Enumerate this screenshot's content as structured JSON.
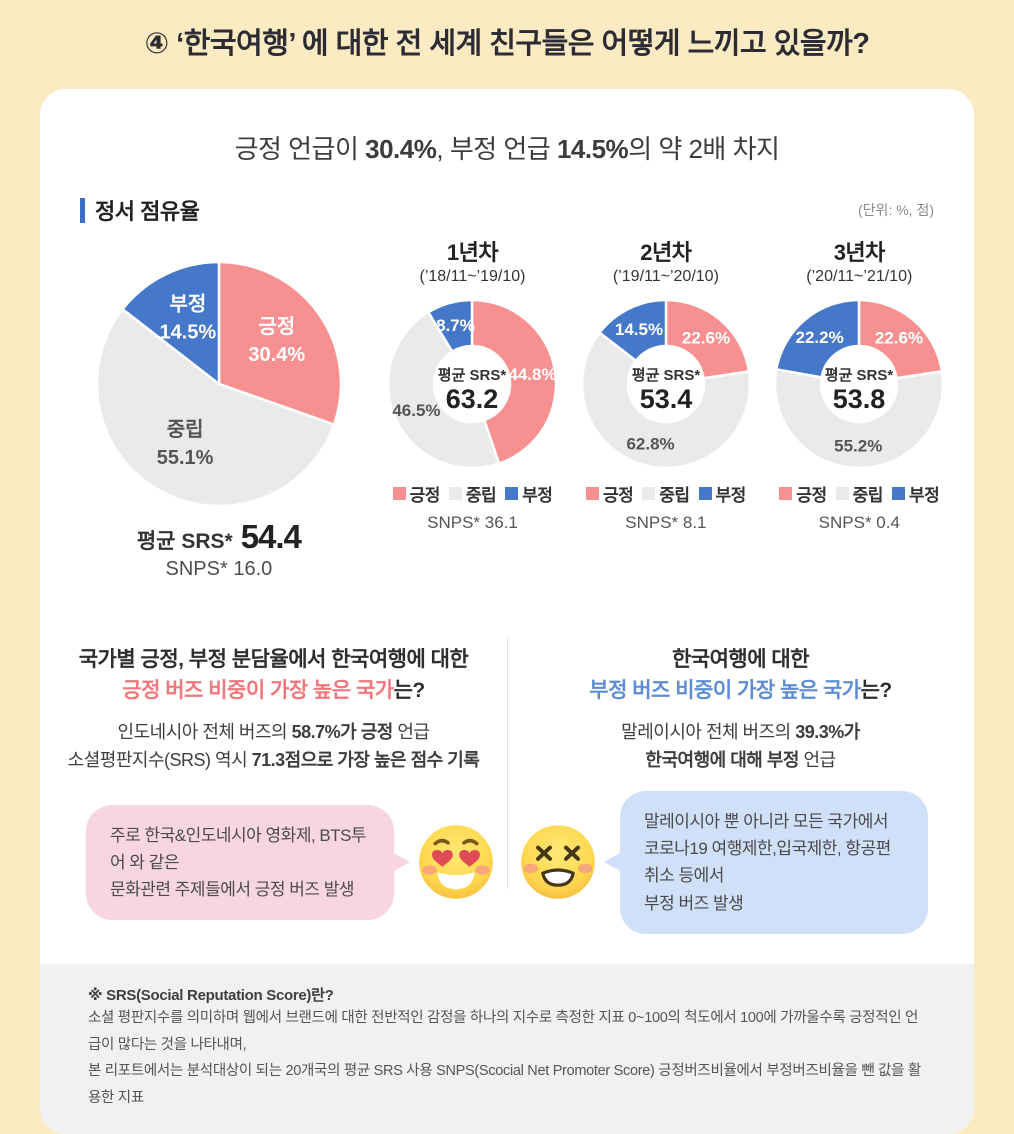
{
  "page": {
    "title": "④ ‘한국여행’ 에 대한 전 세계 친구들은 어떻게 느끼고 있을까?"
  },
  "subtitle_segments": [
    {
      "t": "긍정 언급이 "
    },
    {
      "t": "30.4%",
      "b": true
    },
    {
      "t": ", 부정 언급 "
    },
    {
      "t": "14.5%",
      "b": true
    },
    {
      "t": "의 약 2배 차지"
    }
  ],
  "section": {
    "label": "정서 점유율",
    "unit": "(단위: %, 점)",
    "bar_color": "#3A6BC6"
  },
  "legend": [
    {
      "label": "긍정",
      "color": "#F79191",
      "label_color": "#FFFFFF"
    },
    {
      "label": "중립",
      "color": "#EAEAEA",
      "label_color": "#555555"
    },
    {
      "label": "부정",
      "color": "#4678C9",
      "label_color": "#FFFFFF"
    }
  ],
  "chart_data": [
    {
      "type": "pie",
      "id": "main",
      "slices": [
        {
          "name": "긍정",
          "value": 30.4,
          "label": "30.4%"
        },
        {
          "name": "중립",
          "value": 55.1,
          "label": "55.1%"
        },
        {
          "name": "부정",
          "value": 14.5,
          "label": "14.5%"
        }
      ],
      "avg_label": "평균 SRS*",
      "avg_value": "54.4",
      "snps": "SNPS*  16.0"
    },
    {
      "type": "donut",
      "id": "y1",
      "title": "1년차",
      "period": "(’18/11~’19/10)",
      "slices": [
        {
          "name": "긍정",
          "value": 44.8,
          "label": "44.8%"
        },
        {
          "name": "중립",
          "value": 46.5,
          "label": "46.5%"
        },
        {
          "name": "부정",
          "value": 8.7,
          "label": "8.7%"
        }
      ],
      "center_label": "평균 SRS*",
      "center_value": "63.2",
      "snps": "SNPS*  36.1"
    },
    {
      "type": "donut",
      "id": "y2",
      "title": "2년차",
      "period": "(’19/11~’20/10)",
      "slices": [
        {
          "name": "긍정",
          "value": 22.6,
          "label": "22.6%"
        },
        {
          "name": "중립",
          "value": 62.8,
          "label": "62.8%"
        },
        {
          "name": "부정",
          "value": 14.5,
          "label": "14.5%"
        }
      ],
      "center_label": "평균 SRS*",
      "center_value": "53.4",
      "snps": "SNPS*  8.1"
    },
    {
      "type": "donut",
      "id": "y3",
      "title": "3년차",
      "period": "(’20/11~’21/10)",
      "slices": [
        {
          "name": "긍정",
          "value": 22.6,
          "label": "22.6%"
        },
        {
          "name": "중립",
          "value": 55.2,
          "label": "55.2%"
        },
        {
          "name": "부정",
          "value": 22.2,
          "label": "22.2%"
        }
      ],
      "center_label": "평균 SRS*",
      "center_value": "53.8",
      "snps": "SNPS*  0.4"
    }
  ],
  "qa": {
    "left": {
      "heading": [
        [
          {
            "t": "국가별 긍정, 부정 분담율에서 한국여행에 대한"
          }
        ],
        [
          {
            "t": "긍정 버즈 비중이 가장 높은 국가",
            "c": "#F0777C"
          },
          {
            "t": "는?"
          }
        ]
      ],
      "body": [
        [
          {
            "t": "인도네시아 전체 버즈의 "
          },
          {
            "t": "58.7%가 긍정",
            "b": true
          },
          {
            "t": " 언급"
          }
        ],
        [
          {
            "t": "소셜평판지수(SRS) 역시 "
          },
          {
            "t": "71.3점으로 가장 높은 점수 기록",
            "b": true
          }
        ]
      ]
    },
    "right": {
      "heading": [
        [
          {
            "t": "한국여행에 대한"
          }
        ],
        [
          {
            "t": "부정 버즈 비중이 가장 높은 국가",
            "c": "#5F8DD3"
          },
          {
            "t": "는?"
          }
        ]
      ],
      "body": [
        [
          {
            "t": "말레이시아 전체 버즈의 "
          },
          {
            "t": "39.3%가",
            "b": true
          }
        ],
        [
          {
            "t": "한국여행에 대해 부정",
            "b": true
          },
          {
            "t": " 언급"
          }
        ]
      ]
    }
  },
  "bubbles": {
    "left": {
      "color": "#F8D6DF",
      "emoji": "heart-eyes-emoji",
      "lines": [
        "주로 한국&인도네시아 영화제, BTS투어 와 같은",
        "문화관련 주제들에서 긍정 버즈 발생"
      ]
    },
    "right": {
      "color": "#CFE0F8",
      "emoji": "weary-face-emoji",
      "lines": [
        "말레이시아 뿐 아니라 모든 국가에서",
        "코로나19 여행제한,입국제한, 항공편 취소 등에서",
        "부정 버즈 발생"
      ]
    }
  },
  "footnote": {
    "heading": "※ SRS(Social Reputation Score)란?",
    "line1": "소셜 평판지수를 의미하며 웹에서 브랜드에 대한 전반적인 감정을 하나의 지수로 측정한 지표 0~100의 척도에서 100에 가까울수록 긍정적인 언급이 많다는 것을 나타내며,",
    "line2": "본 리포트에서는 분석대상이 되는 20개국의 평균 SRS 사용 SNPS(Scocial Net Promoter Score) 긍정버즈비율에서 부정버즈비율을 뺀 값을 활용한 지표"
  }
}
